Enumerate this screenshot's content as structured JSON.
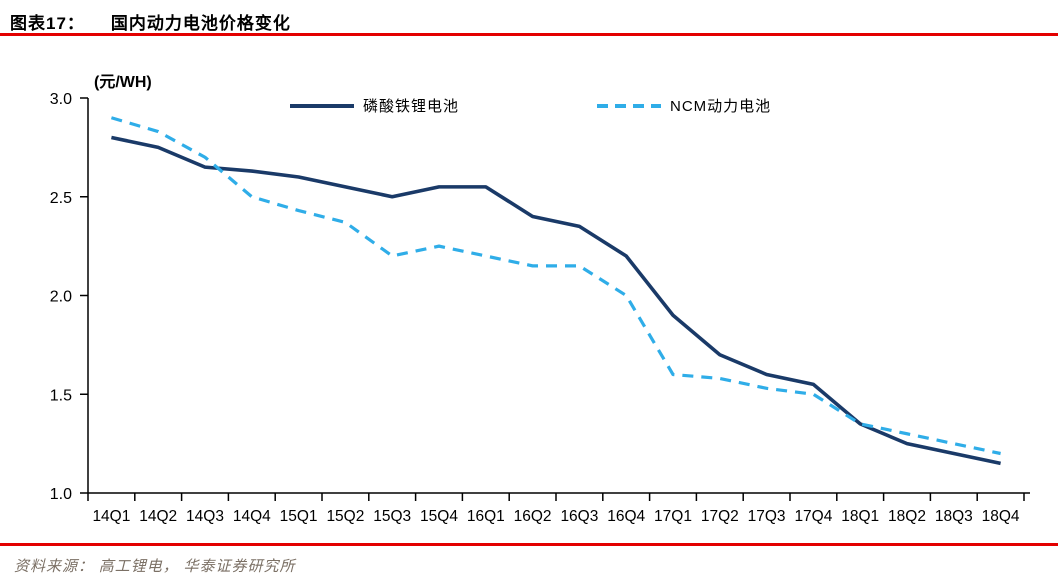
{
  "header": {
    "figure_label": "图表17：",
    "title": "国内动力电池价格变化"
  },
  "chart": {
    "unit_label": "(元/WH)"
  },
  "legend": {
    "lfp": "磷酸铁锂电池",
    "ncm": "NCM动力电池"
  },
  "chart_data": {
    "type": "line",
    "title": "国内动力电池价格变化",
    "unit": "元/WH",
    "categories": [
      "14Q1",
      "14Q2",
      "14Q3",
      "14Q4",
      "15Q1",
      "15Q2",
      "15Q3",
      "15Q4",
      "16Q1",
      "16Q2",
      "16Q3",
      "16Q4",
      "17Q1",
      "17Q2",
      "17Q3",
      "17Q4",
      "18Q1",
      "18Q2",
      "18Q3",
      "18Q4"
    ],
    "series": [
      {
        "name": "磷酸铁锂电池",
        "style": "solid",
        "color": "#1A3A68",
        "values": [
          2.8,
          2.75,
          2.65,
          2.63,
          2.6,
          2.55,
          2.5,
          2.55,
          2.55,
          2.4,
          2.35,
          2.2,
          1.9,
          1.7,
          1.6,
          1.55,
          1.35,
          1.25,
          1.2,
          1.15
        ]
      },
      {
        "name": "NCM动力电池",
        "style": "dashed",
        "color": "#2FADE8",
        "values": [
          2.9,
          2.83,
          2.7,
          2.5,
          2.43,
          2.37,
          2.2,
          2.25,
          2.2,
          2.15,
          2.15,
          2.0,
          1.6,
          1.58,
          1.53,
          1.5,
          1.35,
          1.3,
          1.25,
          1.2
        ]
      }
    ],
    "ylim": [
      1.0,
      3.0
    ],
    "y_ticks": [
      "3.0",
      "2.5",
      "2.0",
      "1.5",
      "1.0"
    ],
    "grid": false,
    "legend_position": "top"
  },
  "footer": {
    "source": "资料来源： 高工锂电， 华泰证券研究所"
  },
  "colors": {
    "accent_red": "#E30000",
    "lfp_line": "#1A3A68",
    "ncm_line": "#2FADE8",
    "axis": "#000000",
    "tick_text": "#000000",
    "source_text": "#7B7065"
  }
}
